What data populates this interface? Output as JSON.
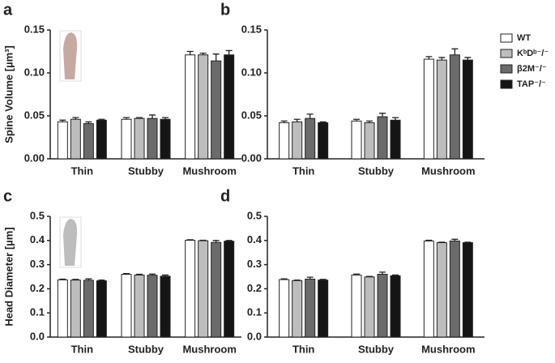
{
  "chart_data": [
    {
      "type": "bar",
      "label": "a",
      "ylabel": "Spine Volume [µm³]",
      "legend": "right",
      "categories": [
        "Thin",
        "Stubby",
        "Mushroom"
      ],
      "ylim": [
        0,
        0.15
      ],
      "yticks": [
        {
          "value": 0,
          "label": "0.00"
        },
        {
          "value": 0.05,
          "label": "0.05"
        },
        {
          "value": 0.1,
          "label": "0.10"
        },
        {
          "value": 0.15,
          "label": "0.15"
        }
      ],
      "series": [
        {
          "name": "WT",
          "color": "#ffffff",
          "values": [
            0.043,
            0.046,
            0.121
          ],
          "errors": [
            0.002,
            0.002,
            0.004
          ]
        },
        {
          "name": "KᵇDᵇ⁻/⁻",
          "color": "#bdbdbd",
          "values": [
            0.046,
            0.047,
            0.121
          ],
          "errors": [
            0.002,
            0.001,
            0.002
          ]
        },
        {
          "name": "β2M⁻/⁻",
          "color": "#6b6b6b",
          "values": [
            0.041,
            0.047,
            0.114
          ],
          "errors": [
            0.002,
            0.004,
            0.008
          ]
        },
        {
          "name": "TAP⁻/⁻",
          "color": "#151515",
          "values": [
            0.045,
            0.046,
            0.121
          ],
          "errors": [
            0.001,
            0.002,
            0.005
          ]
        }
      ]
    },
    {
      "type": "bar",
      "label": "b",
      "categories": [
        "Thin",
        "Stubby",
        "Mushroom"
      ],
      "ylim": [
        0,
        0.15
      ],
      "yticks": [
        {
          "value": 0,
          "label": "0.00"
        },
        {
          "value": 0.05,
          "label": "0.05"
        },
        {
          "value": 0.1,
          "label": "0.10"
        },
        {
          "value": 0.15,
          "label": "0.15"
        }
      ],
      "series": [
        {
          "color": "#ffffff",
          "values": [
            0.042,
            0.044,
            0.116
          ],
          "errors": [
            0.002,
            0.002,
            0.003
          ]
        },
        {
          "color": "#bdbdbd",
          "values": [
            0.043,
            0.042,
            0.115
          ],
          "errors": [
            0.003,
            0.002,
            0.003
          ]
        },
        {
          "color": "#6b6b6b",
          "values": [
            0.047,
            0.049,
            0.121
          ],
          "errors": [
            0.005,
            0.004,
            0.007
          ]
        },
        {
          "color": "#151515",
          "values": [
            0.042,
            0.045,
            0.115
          ],
          "errors": [
            0.001,
            0.003,
            0.003
          ]
        }
      ]
    },
    {
      "type": "bar",
      "label": "c",
      "ylabel": "Head Diameter [µm]",
      "categories": [
        "Thin",
        "Stubby",
        "Mushroom"
      ],
      "ylim": [
        0,
        0.5
      ],
      "yticks": [
        {
          "value": 0,
          "label": "0.0"
        },
        0.1,
        0.2,
        0.3,
        0.4,
        0.5
      ],
      "series": [
        {
          "color": "#ffffff",
          "values": [
            0.237,
            0.26,
            0.401
          ],
          "errors": [
            0.003,
            0.003,
            0.002
          ]
        },
        {
          "color": "#bdbdbd",
          "values": [
            0.236,
            0.257,
            0.399
          ],
          "errors": [
            0.003,
            0.003,
            0.002
          ]
        },
        {
          "color": "#6b6b6b",
          "values": [
            0.235,
            0.256,
            0.392
          ],
          "errors": [
            0.006,
            0.005,
            0.008
          ]
        },
        {
          "color": "#151515",
          "values": [
            0.233,
            0.252,
            0.397
          ],
          "errors": [
            0.003,
            0.005,
            0.003
          ]
        }
      ]
    },
    {
      "type": "bar",
      "label": "d",
      "categories": [
        "Thin",
        "Stubby",
        "Mushroom"
      ],
      "ylim": [
        0,
        0.5
      ],
      "yticks": [
        {
          "value": 0,
          "label": "0.0"
        },
        0.1,
        0.2,
        0.3,
        0.4,
        0.5
      ],
      "series": [
        {
          "color": "#ffffff",
          "values": [
            0.238,
            0.257,
            0.398
          ],
          "errors": [
            0.003,
            0.004,
            0.003
          ]
        },
        {
          "color": "#bdbdbd",
          "values": [
            0.234,
            0.249,
            0.391
          ],
          "errors": [
            0.002,
            0.002,
            0.002
          ]
        },
        {
          "color": "#6b6b6b",
          "values": [
            0.24,
            0.26,
            0.398
          ],
          "errors": [
            0.008,
            0.009,
            0.007
          ]
        },
        {
          "color": "#151515",
          "values": [
            0.236,
            0.254,
            0.391
          ],
          "errors": [
            0.003,
            0.003,
            0.002
          ]
        }
      ]
    }
  ]
}
